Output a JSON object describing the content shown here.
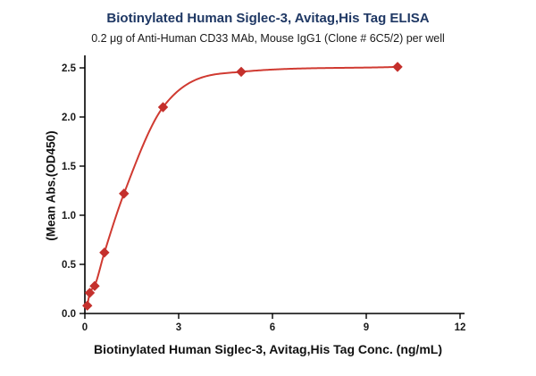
{
  "header": {
    "title": "Biotinylated Human Siglec-3, Avitag,His Tag ELISA",
    "subtitle": "0.2 μg of Anti-Human CD33 MAb, Mouse IgG1 (Clone # 6C5/2) per well"
  },
  "chart_data": {
    "type": "scatter",
    "title": "Biotinylated Human Siglec-3, Avitag,His Tag ELISA",
    "subtitle": "0.2 μg of Anti-Human CD33 MAb, Mouse IgG1 (Clone # 6C5/2) per well",
    "xlabel": "Biotinylated Human Siglec-3, Avitag,His Tag Conc. (ng/mL)",
    "ylabel": "(Mean Abs.(OD450)",
    "x": [
      0.078,
      0.156,
      0.313,
      0.625,
      1.25,
      2.5,
      5,
      10
    ],
    "y": [
      0.08,
      0.21,
      0.28,
      0.62,
      1.22,
      2.1,
      2.46,
      2.51
    ],
    "curve": "4PL-style smooth fit through points",
    "xlim": [
      0,
      12
    ],
    "ylim": [
      0,
      2.5
    ],
    "xtick_values": [
      0,
      3,
      6,
      9,
      12
    ],
    "xtick_labels": [
      "0",
      "3",
      "6",
      "9",
      "12"
    ],
    "ytick_values": [
      0,
      0.5,
      1.0,
      1.5,
      2.0,
      2.5
    ],
    "ytick_labels": [
      "0.0",
      "0.5",
      "1.0",
      "1.5",
      "2.0",
      "2.5"
    ],
    "grid": "off",
    "legend": "none",
    "colors": {
      "line": "#d03a31",
      "marker": "#c4302c",
      "axis": "#000000",
      "title": "#1f3864",
      "text": "#1a1a1a"
    }
  }
}
